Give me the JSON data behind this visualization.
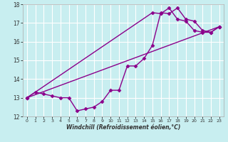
{
  "xlabel": "Windchill (Refroidissement éolien,°C)",
  "xlim": [
    -0.5,
    23.5
  ],
  "ylim": [
    12,
    18
  ],
  "xticks": [
    0,
    1,
    2,
    3,
    4,
    5,
    6,
    7,
    8,
    9,
    10,
    11,
    12,
    13,
    14,
    15,
    16,
    17,
    18,
    19,
    20,
    21,
    22,
    23
  ],
  "yticks": [
    12,
    13,
    14,
    15,
    16,
    17,
    18
  ],
  "bg_color": "#c8eef0",
  "line_color": "#8b008b",
  "grid_color": "#ffffff",
  "line1_x": [
    0,
    1,
    2,
    3,
    4,
    5,
    6,
    7,
    8,
    9,
    10,
    11,
    12,
    13,
    14,
    15,
    16,
    17,
    18,
    19,
    20,
    21,
    22,
    23
  ],
  "line1_y": [
    13.0,
    13.3,
    13.2,
    13.1,
    13.0,
    13.0,
    12.3,
    12.4,
    12.5,
    12.8,
    13.4,
    13.4,
    14.7,
    14.7,
    15.1,
    15.8,
    17.55,
    17.5,
    17.8,
    17.2,
    17.1,
    16.6,
    16.5,
    16.8
  ],
  "line2_x": [
    0,
    23
  ],
  "line2_y": [
    13.0,
    16.8
  ],
  "line3_x": [
    0,
    15,
    16,
    17,
    18,
    19,
    20,
    21,
    22,
    23
  ],
  "line3_y": [
    13.0,
    17.55,
    17.5,
    17.8,
    17.2,
    17.1,
    16.6,
    16.5,
    16.5,
    16.8
  ],
  "marker": "D",
  "markersize": 2.5,
  "linewidth": 1.0
}
